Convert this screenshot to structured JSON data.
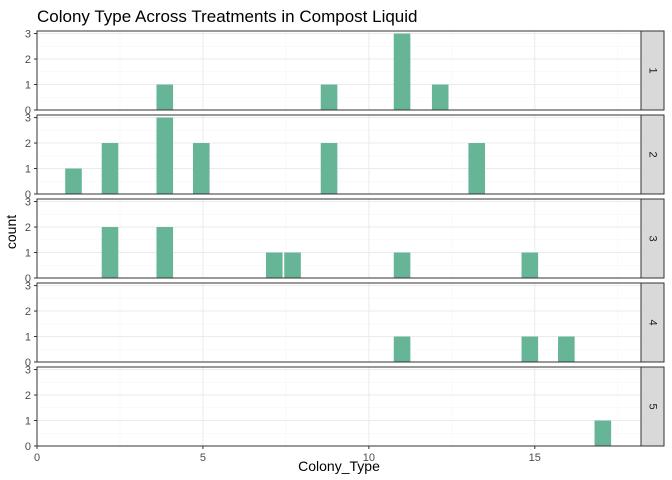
{
  "chart_data": {
    "type": "bar",
    "title": "Colony Type Across Treatments in Compost Liquid",
    "xlabel": "Colony_Type",
    "ylabel": "count",
    "xlim": [
      0,
      18.2
    ],
    "ylim": [
      0,
      3.1
    ],
    "x_ticks": [
      0,
      5,
      10,
      15
    ],
    "y_ticks": [
      0,
      1,
      2,
      3
    ],
    "bar_width": 0.5,
    "bar_color": "#66b596",
    "grid": true,
    "facets": [
      {
        "label": "1",
        "bars": [
          {
            "x": 3.85,
            "count": 1
          },
          {
            "x": 8.8,
            "count": 1
          },
          {
            "x": 11.0,
            "count": 3
          },
          {
            "x": 12.15,
            "count": 1
          }
        ]
      },
      {
        "label": "2",
        "bars": [
          {
            "x": 1.1,
            "count": 1
          },
          {
            "x": 2.2,
            "count": 2
          },
          {
            "x": 3.85,
            "count": 3
          },
          {
            "x": 4.95,
            "count": 2
          },
          {
            "x": 8.8,
            "count": 2
          },
          {
            "x": 13.25,
            "count": 2
          }
        ]
      },
      {
        "label": "3",
        "bars": [
          {
            "x": 2.2,
            "count": 2
          },
          {
            "x": 3.85,
            "count": 2
          },
          {
            "x": 7.15,
            "count": 1
          },
          {
            "x": 7.7,
            "count": 1
          },
          {
            "x": 11.0,
            "count": 1
          },
          {
            "x": 14.85,
            "count": 1
          }
        ]
      },
      {
        "label": "4",
        "bars": [
          {
            "x": 11.0,
            "count": 1
          },
          {
            "x": 14.85,
            "count": 1
          },
          {
            "x": 15.95,
            "count": 1
          }
        ]
      },
      {
        "label": "5",
        "bars": [
          {
            "x": 17.05,
            "count": 1
          }
        ]
      }
    ]
  }
}
